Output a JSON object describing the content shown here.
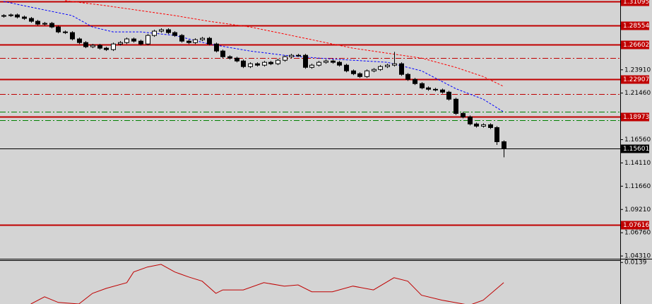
{
  "chart_data": [
    {
      "type": "candlestick",
      "xlim": [
        -0.5,
        90
      ],
      "ylim": [
        1.0402,
        1.3126
      ],
      "yticks": [
        {
          "value": 1.2391,
          "label": "1.23910"
        },
        {
          "value": 1.2146,
          "label": "1.21460"
        },
        {
          "value": 1.1656,
          "label": "1.16560"
        },
        {
          "value": 1.1411,
          "label": "1.14110"
        },
        {
          "value": 1.1166,
          "label": "1.11660"
        },
        {
          "value": 1.0921,
          "label": "1.09210"
        },
        {
          "value": 1.0676,
          "label": "1.06760"
        },
        {
          "value": 1.0431,
          "label": "1.04310"
        }
      ],
      "up_color": "#ffffff",
      "down_color": "#000000",
      "edge_color": "#000000",
      "open": [
        1.2955,
        1.2962,
        1.2969,
        1.2947,
        1.2932,
        1.2902,
        1.2872,
        1.288,
        1.2842,
        1.279,
        1.2783,
        1.2716,
        1.2678,
        1.2634,
        1.2649,
        1.2619,
        1.2604,
        1.2663,
        1.2678,
        1.2716,
        1.2693,
        1.2663,
        1.2753,
        1.2798,
        1.2813,
        1.2783,
        1.2753,
        1.2693,
        1.2678,
        1.2708,
        1.2723,
        1.2663,
        1.2589,
        1.2529,
        1.2514,
        1.2484,
        1.2425,
        1.2455,
        1.244,
        1.247,
        1.2455,
        1.2492,
        1.2529,
        1.2544,
        1.2544,
        1.2417,
        1.244,
        1.247,
        1.2484,
        1.247,
        1.244,
        1.238,
        1.235,
        1.232,
        1.238,
        1.2395,
        1.2425,
        1.244,
        1.2455,
        1.2343,
        1.229,
        1.2246,
        1.2201,
        1.2186,
        1.2179,
        1.2156,
        1.2082,
        1.1932,
        1.1895,
        1.1821,
        1.1798,
        1.1813,
        1.1783,
        1.1634
      ],
      "high": [
        1.2977,
        1.2984,
        1.2984,
        1.2962,
        1.2947,
        1.2917,
        1.2895,
        1.2895,
        1.2857,
        1.2805,
        1.2798,
        1.2731,
        1.2693,
        1.2664,
        1.2664,
        1.2634,
        1.2678,
        1.2693,
        1.2731,
        1.2731,
        1.2708,
        1.2768,
        1.2813,
        1.2828,
        1.2828,
        1.2798,
        1.2768,
        1.2708,
        1.2723,
        1.2738,
        1.2738,
        1.2678,
        1.2604,
        1.2544,
        1.2529,
        1.2499,
        1.247,
        1.247,
        1.2485,
        1.2485,
        1.2507,
        1.2544,
        1.2559,
        1.2559,
        1.2559,
        1.2455,
        1.2485,
        1.2499,
        1.2499,
        1.2485,
        1.2455,
        1.2395,
        1.2365,
        1.2395,
        1.241,
        1.244,
        1.2455,
        1.258,
        1.247,
        1.2358,
        1.2305,
        1.2261,
        1.2216,
        1.2201,
        1.2194,
        1.2171,
        1.2097,
        1.1947,
        1.191,
        1.1836,
        1.1828,
        1.1828,
        1.1798,
        1.1649
      ],
      "low": [
        1.294,
        1.2947,
        1.2932,
        1.2917,
        1.2887,
        1.2857,
        1.2857,
        1.2827,
        1.2775,
        1.2768,
        1.2701,
        1.2663,
        1.2619,
        1.2619,
        1.2604,
        1.2589,
        1.2589,
        1.2648,
        1.2663,
        1.2678,
        1.2648,
        1.2648,
        1.2738,
        1.2783,
        1.2768,
        1.2738,
        1.2678,
        1.2663,
        1.2663,
        1.2693,
        1.2648,
        1.2574,
        1.2514,
        1.2499,
        1.2469,
        1.241,
        1.241,
        1.2425,
        1.2425,
        1.244,
        1.244,
        1.2477,
        1.2514,
        1.2529,
        1.2402,
        1.2402,
        1.2425,
        1.2455,
        1.2455,
        1.2425,
        1.2365,
        1.2335,
        1.2305,
        1.2305,
        1.2365,
        1.238,
        1.241,
        1.2425,
        1.2328,
        1.2275,
        1.2231,
        1.2186,
        1.2171,
        1.2164,
        1.2141,
        1.2067,
        1.1917,
        1.188,
        1.1806,
        1.1783,
        1.1783,
        1.1768,
        1.16,
        1.147
      ],
      "close": [
        1.2962,
        1.2969,
        1.2947,
        1.2932,
        1.2902,
        1.2872,
        1.288,
        1.2842,
        1.279,
        1.2783,
        1.2716,
        1.2678,
        1.2634,
        1.2649,
        1.2619,
        1.2604,
        1.2663,
        1.2678,
        1.2716,
        1.2693,
        1.2663,
        1.2753,
        1.2798,
        1.2813,
        1.2783,
        1.2753,
        1.2693,
        1.2678,
        1.2708,
        1.2723,
        1.2663,
        1.2589,
        1.2529,
        1.2514,
        1.2484,
        1.2425,
        1.2455,
        1.244,
        1.247,
        1.2455,
        1.2492,
        1.2529,
        1.2544,
        1.2544,
        1.2417,
        1.244,
        1.247,
        1.2484,
        1.247,
        1.244,
        1.238,
        1.235,
        1.232,
        1.238,
        1.2395,
        1.2425,
        1.244,
        1.2455,
        1.2343,
        1.229,
        1.2246,
        1.2201,
        1.2186,
        1.2179,
        1.2156,
        1.2082,
        1.1932,
        1.1895,
        1.1821,
        1.1798,
        1.1813,
        1.1783,
        1.1634,
        1.156
      ],
      "series": [
        {
          "color": "#0000ff",
          "style": "dashed",
          "x": [
            0,
            4,
            10,
            13,
            16,
            20,
            25,
            30,
            36,
            41,
            46,
            51,
            56,
            61,
            66,
            70,
            73
          ],
          "values": [
            1.3111,
            1.3051,
            1.2962,
            1.2842,
            1.279,
            1.279,
            1.2753,
            1.2663,
            1.2589,
            1.2544,
            1.2514,
            1.2492,
            1.247,
            1.238,
            1.2193,
            1.2082,
            1.1947
          ]
        },
        {
          "color": "#ff0000",
          "style": "dashed",
          "x": [
            9,
            15,
            20,
            25,
            30,
            36,
            41,
            46,
            51,
            56,
            61,
            66,
            70,
            73
          ],
          "values": [
            1.3119,
            1.3066,
            1.3014,
            1.2962,
            1.2902,
            1.2842,
            1.2768,
            1.2693,
            1.2619,
            1.2566,
            1.2514,
            1.2417,
            1.232,
            1.2216
          ]
        }
      ],
      "levels": [
        {
          "value": 1.31095,
          "color": "#c00000",
          "style": "solid",
          "labeled": true
        },
        {
          "value": 1.28554,
          "color": "#c00000",
          "style": "solid",
          "labeled": true
        },
        {
          "value": 1.26602,
          "color": "#c00000",
          "style": "solid",
          "labeled": true
        },
        {
          "value": 1.22907,
          "color": "#c00000",
          "style": "solid",
          "labeled": true
        },
        {
          "value": 1.18973,
          "color": "#c00000",
          "style": "solid",
          "labeled": true
        },
        {
          "value": 1.07616,
          "color": "#c00000",
          "style": "solid",
          "labeled": true
        },
        {
          "value": 1.2514,
          "color": "#c00000",
          "style": "dashdot",
          "labeled": false
        },
        {
          "value": 1.2134,
          "color": "#c00000",
          "style": "dashdot",
          "labeled": false
        },
        {
          "value": 1.1947,
          "color": "#008000",
          "style": "dashdot",
          "labeled": false
        },
        {
          "value": 1.1858,
          "color": "#008000",
          "style": "dashdot",
          "labeled": false
        }
      ],
      "current_price": 1.15601,
      "current_color": "#000000"
    },
    {
      "type": "line",
      "xlim": [
        -0.5,
        90
      ],
      "ylim": [
        0.003,
        0.0145
      ],
      "yticks": [
        0.0139
      ],
      "color": "#c00000",
      "x": [
        4,
        6,
        8,
        11,
        13,
        15,
        18,
        19,
        21,
        23,
        25,
        27,
        29,
        31,
        32,
        35,
        38,
        41,
        43,
        45,
        48,
        51,
        54,
        57,
        59,
        61,
        64,
        68,
        70,
        73
      ],
      "values": [
        0.003,
        0.0049,
        0.0034,
        0.003,
        0.0058,
        0.0071,
        0.0086,
        0.0114,
        0.0127,
        0.0134,
        0.0114,
        0.0101,
        0.009,
        0.0058,
        0.0067,
        0.0067,
        0.0086,
        0.0077,
        0.008,
        0.0062,
        0.0062,
        0.0077,
        0.0067,
        0.0099,
        0.009,
        0.0053,
        0.004,
        0.0027,
        0.004,
        0.0086
      ]
    }
  ]
}
